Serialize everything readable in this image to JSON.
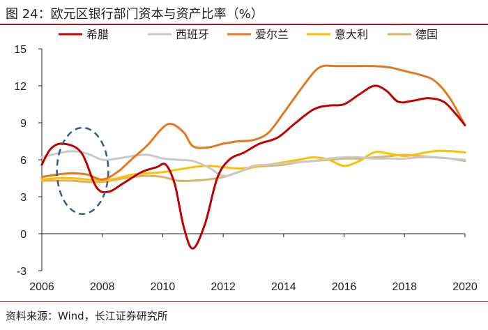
{
  "header": {
    "title": "图 24：欧元区银行部门资本与资产比率（%）"
  },
  "footer": {
    "source": "资料来源：Wind，长江证券研究所"
  },
  "chart_data": {
    "type": "line",
    "title": "欧元区银行部门资本与资产比率（%）",
    "xlabel": "",
    "ylabel": "",
    "xlim": [
      2006,
      2020
    ],
    "ylim": [
      -3,
      15
    ],
    "xticks": [
      2006,
      2008,
      2010,
      2012,
      2014,
      2016,
      2018,
      2020
    ],
    "yticks": [
      -3,
      0,
      3,
      6,
      9,
      12,
      15
    ],
    "legend_position": "top",
    "series": [
      {
        "name": "希腊",
        "color": "#c00000",
        "x": [
          2006.0,
          2006.3,
          2006.7,
          2007.3,
          2007.8,
          2008.2,
          2008.7,
          2009.3,
          2009.8,
          2010.1,
          2010.4,
          2010.7,
          2011.0,
          2011.4,
          2011.8,
          2012.2,
          2012.7,
          2013.2,
          2013.8,
          2014.4,
          2015.0,
          2015.5,
          2016.0,
          2016.5,
          2017.0,
          2017.4,
          2017.8,
          2018.3,
          2018.8,
          2019.3,
          2019.7,
          2020.0
        ],
        "values": [
          5.6,
          6.9,
          7.3,
          6.6,
          3.8,
          3.4,
          4.1,
          5.0,
          5.4,
          5.6,
          4.0,
          0.5,
          -1.2,
          0.8,
          4.5,
          6.0,
          6.6,
          7.3,
          7.8,
          9.0,
          10.1,
          10.4,
          10.5,
          11.3,
          12.0,
          11.6,
          10.7,
          10.8,
          11.0,
          10.7,
          9.7,
          8.8
        ]
      },
      {
        "name": "西班牙",
        "color": "#c9c9c9",
        "x": [
          2006.0,
          2006.5,
          2007.0,
          2007.5,
          2008.0,
          2008.5,
          2009.0,
          2009.5,
          2010.0,
          2010.5,
          2011.0,
          2011.5,
          2012.0,
          2012.5,
          2013.0,
          2013.5,
          2014.0,
          2014.5,
          2015.0,
          2015.5,
          2016.0,
          2016.5,
          2017.0,
          2017.5,
          2018.0,
          2018.5,
          2019.0,
          2019.5,
          2020.0
        ],
        "values": [
          6.2,
          6.5,
          6.7,
          6.5,
          6.0,
          6.1,
          6.3,
          6.4,
          6.1,
          6.0,
          5.9,
          5.4,
          4.7,
          5.0,
          5.5,
          5.6,
          5.7,
          5.8,
          5.9,
          6.1,
          6.2,
          6.2,
          6.1,
          6.1,
          6.1,
          6.2,
          6.2,
          6.1,
          6.0
        ]
      },
      {
        "name": "爱尔兰",
        "color": "#e6771e",
        "x": [
          2006.0,
          2006.5,
          2007.0,
          2007.5,
          2008.0,
          2008.5,
          2009.0,
          2009.5,
          2010.0,
          2010.3,
          2010.7,
          2011.0,
          2011.5,
          2012.0,
          2012.5,
          2013.0,
          2013.5,
          2014.0,
          2014.5,
          2015.0,
          2015.3,
          2015.7,
          2016.0,
          2016.5,
          2017.0,
          2017.5,
          2018.0,
          2018.5,
          2019.0,
          2019.5,
          2020.0
        ],
        "values": [
          4.6,
          4.8,
          4.9,
          4.8,
          4.4,
          5.0,
          6.1,
          7.2,
          8.6,
          8.9,
          8.2,
          7.1,
          7.0,
          7.3,
          7.5,
          7.6,
          8.2,
          9.8,
          11.5,
          13.1,
          13.6,
          13.6,
          13.6,
          13.6,
          13.6,
          13.5,
          13.2,
          12.9,
          12.4,
          11.0,
          8.8
        ]
      },
      {
        "name": "意大利",
        "color": "#ffc000",
        "x": [
          2006.0,
          2006.5,
          2007.0,
          2007.5,
          2008.0,
          2008.5,
          2009.0,
          2009.5,
          2010.0,
          2010.5,
          2011.0,
          2011.5,
          2012.0,
          2012.5,
          2013.0,
          2013.5,
          2014.0,
          2014.5,
          2015.0,
          2015.5,
          2016.0,
          2016.5,
          2017.0,
          2017.5,
          2018.0,
          2018.5,
          2019.0,
          2019.5,
          2020.0
        ],
        "values": [
          4.4,
          4.5,
          4.5,
          4.4,
          4.3,
          4.5,
          4.8,
          4.9,
          5.0,
          5.2,
          5.4,
          5.5,
          5.4,
          5.3,
          5.4,
          5.6,
          5.8,
          6.0,
          6.2,
          6.0,
          5.5,
          5.9,
          6.6,
          6.5,
          6.3,
          6.5,
          6.7,
          6.7,
          6.6
        ]
      },
      {
        "name": "德国",
        "color": "#d9b36a",
        "x": [
          2006.0,
          2006.5,
          2007.0,
          2007.5,
          2008.0,
          2008.5,
          2009.0,
          2009.5,
          2010.0,
          2010.5,
          2011.0,
          2011.5,
          2012.0,
          2012.5,
          2013.0,
          2013.5,
          2014.0,
          2014.5,
          2015.0,
          2015.5,
          2016.0,
          2016.5,
          2017.0,
          2017.5,
          2018.0,
          2018.5,
          2019.0,
          2019.5,
          2020.0
        ],
        "values": [
          4.3,
          4.3,
          4.3,
          4.2,
          4.2,
          4.4,
          4.6,
          4.7,
          4.6,
          4.3,
          4.3,
          4.4,
          4.6,
          5.0,
          5.4,
          5.5,
          5.6,
          5.8,
          5.9,
          6.0,
          6.1,
          6.1,
          6.2,
          6.3,
          6.4,
          6.3,
          6.2,
          6.1,
          5.9
        ]
      }
    ],
    "annotations": [
      {
        "type": "dashed-ellipse",
        "color": "#2e5f8a",
        "x_range": [
          2006.5,
          2008.2
        ],
        "y_range": [
          1.6,
          8.6
        ]
      }
    ]
  }
}
